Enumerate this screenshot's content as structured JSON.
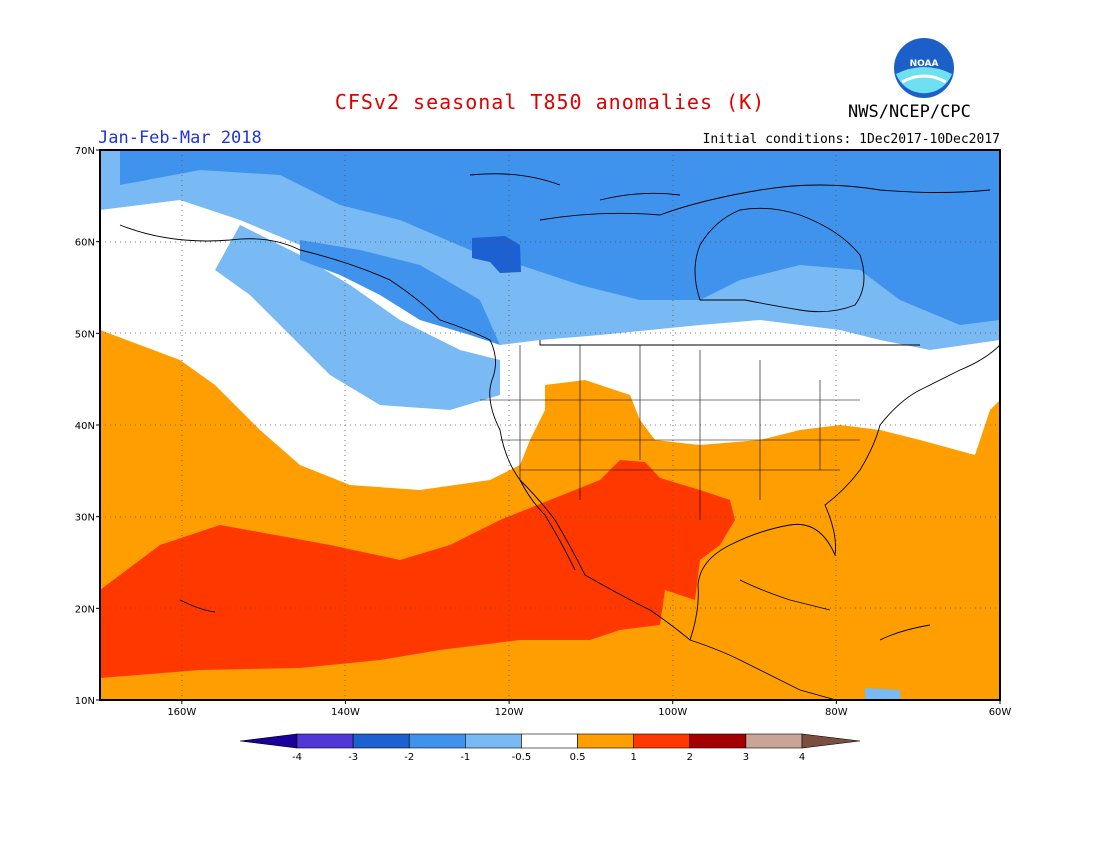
{
  "title": "CFSv2 seasonal T850 anomalies (K)",
  "agency": "NWS/NCEP/CPC",
  "logo_text": "NOAA",
  "period": "Jan-Feb-Mar 2018",
  "initial_conditions": "Initial conditions: 1Dec2017-10Dec2017",
  "map": {
    "lon_range": [
      -170,
      -60
    ],
    "lat_range": [
      10,
      70
    ],
    "lat_labels": [
      "10N",
      "20N",
      "30N",
      "40N",
      "50N",
      "60N",
      "70N"
    ],
    "lon_labels": [
      "160W",
      "140W",
      "120W",
      "100W",
      "80W",
      "60W"
    ]
  },
  "colorbar": {
    "labels": [
      "-4",
      "-3",
      "-2",
      "-1",
      "-0.5",
      "0.5",
      "1",
      "2",
      "3",
      "4"
    ],
    "colors": [
      "#1a009a",
      "#5037d6",
      "#1d60d1",
      "#3f93ed",
      "#79b9f4",
      "#ffffff",
      "#ff9e00",
      "#ff3800",
      "#a50000",
      "#c9a595",
      "#7a4f40"
    ]
  },
  "colors": {
    "strong_cold": "#1d60d1",
    "cold": "#3f93ed",
    "cool": "#79b9f4",
    "neutral": "#ffffff",
    "warm": "#ff9e00",
    "hot": "#ff3800",
    "title": "#e00000",
    "period": "#2233dd"
  }
}
